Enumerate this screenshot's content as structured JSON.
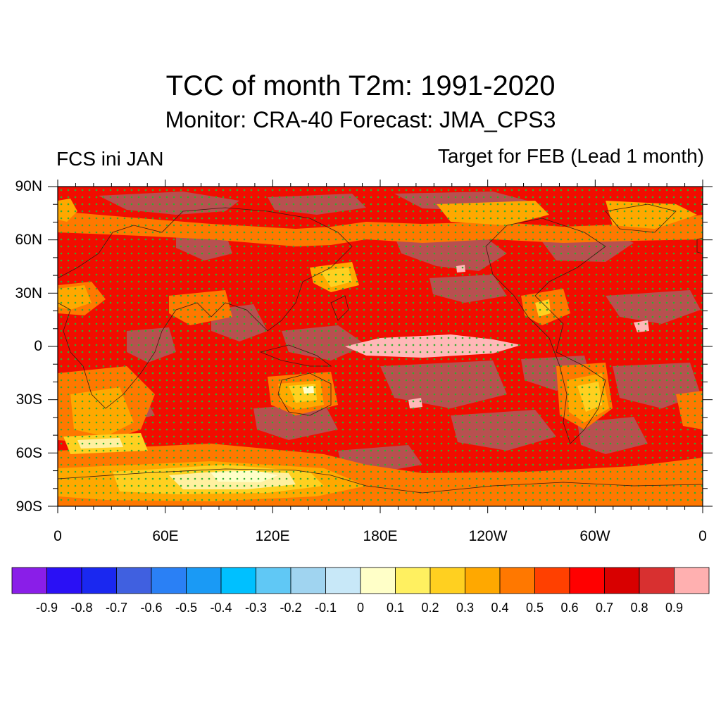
{
  "title": "TCC of month T2m: 1991-2020",
  "subtitle": "Monitor: CRA-40   Forecast: JMA_CPS3",
  "left_label": "FCS ini JAN",
  "right_label": "Target for FEB (Lead 1 month)",
  "lat_labels": [
    "90N",
    "60N",
    "30N",
    "0",
    "30S",
    "60S",
    "90S"
  ],
  "lon_labels": [
    "0",
    "60E",
    "120E",
    "180E",
    "120W",
    "60W",
    "0"
  ],
  "colorbar": {
    "colors": [
      "#8a1ee8",
      "#2a10f5",
      "#1a28f0",
      "#4060e0",
      "#2a80f5",
      "#1a9af5",
      "#00c0ff",
      "#60c8f5",
      "#a0d4f0",
      "#c8e8f8",
      "#ffffc8",
      "#fff060",
      "#ffd020",
      "#ffa800",
      "#ff7800",
      "#ff4000",
      "#ff0000",
      "#d80000",
      "#d83030",
      "#ffb0b0"
    ],
    "labels": [
      "-0.9",
      "-0.8",
      "-0.7",
      "-0.6",
      "-0.5",
      "-0.4",
      "-0.3",
      "-0.2",
      "-0.1",
      "0",
      "0.1",
      "0.2",
      "0.3",
      "0.4",
      "0.5",
      "0.6",
      "0.7",
      "0.8",
      "0.9"
    ]
  },
  "map_colors": {
    "base": "#f20c00",
    "dark": "#b85050",
    "orange": "#ff7800",
    "amber": "#ffa800",
    "yellow": "#ffd020",
    "lightyellow": "#fff0a0",
    "pale": "#ffffc8",
    "pink": "#ffb8b8",
    "dots": "#2fb02f"
  }
}
